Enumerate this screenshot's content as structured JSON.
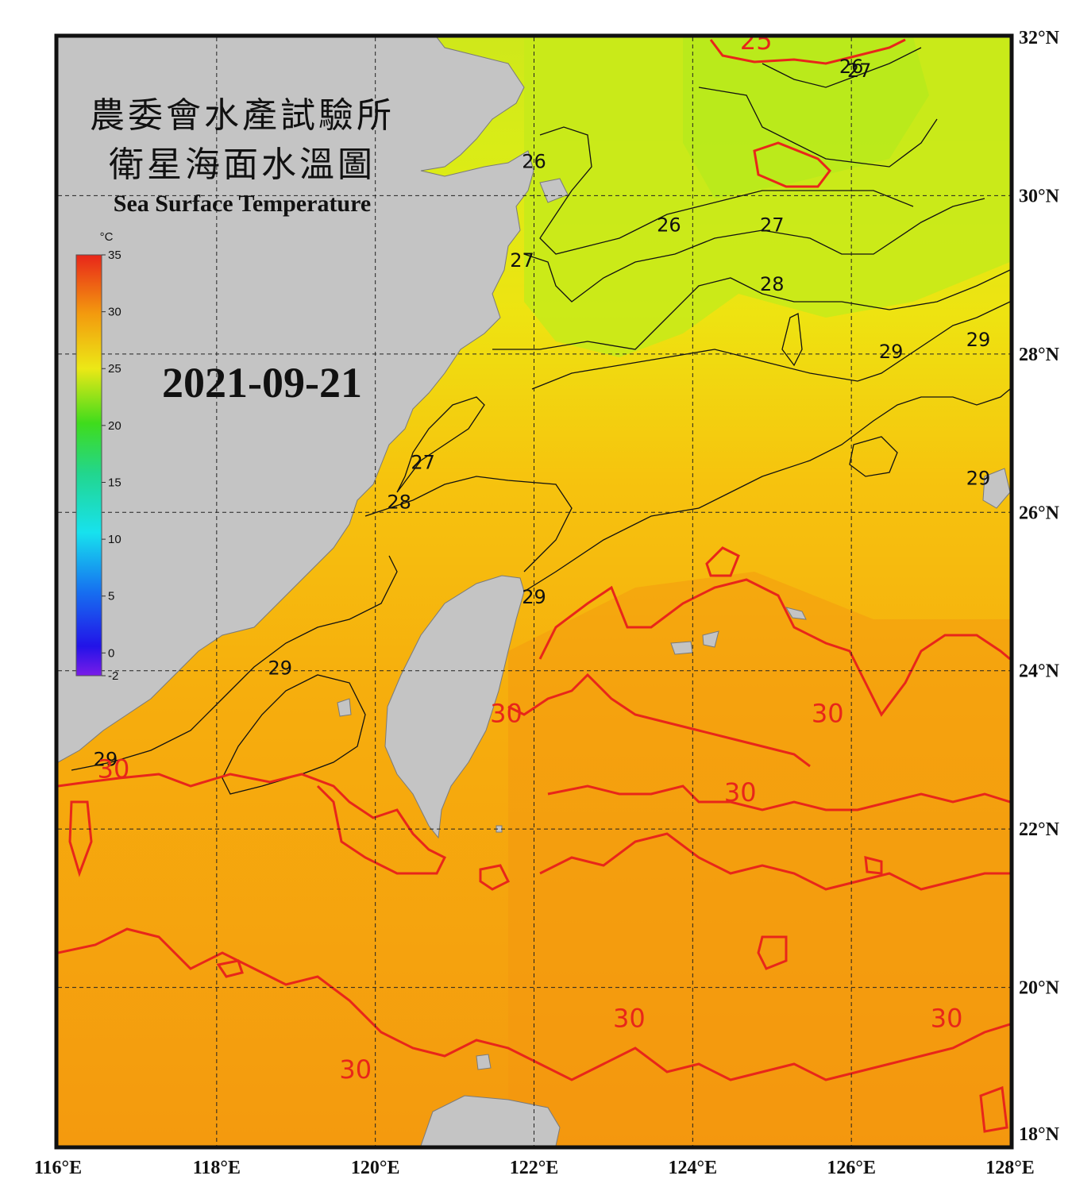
{
  "title": {
    "line1": "農委會水產試驗所",
    "line2": "衛星海面水溫圖",
    "line3": "Sea Surface Temperature"
  },
  "date": "2021-09-21",
  "colorbar": {
    "unit": "°C",
    "ticks": [
      "35",
      "30",
      "25",
      "20",
      "15",
      "10",
      "5",
      "0",
      "-2"
    ],
    "min": -2,
    "max": 35
  },
  "axes": {
    "lon_labels": [
      "116°E",
      "118°E",
      "120°E",
      "122°E",
      "124°E",
      "126°E",
      "128°E"
    ],
    "lat_labels": [
      "32°N",
      "30°N",
      "28°N",
      "26°N",
      "24°N",
      "22°N",
      "20°N",
      "18°N"
    ],
    "lon_range": [
      116,
      128
    ],
    "lat_range": [
      18,
      32
    ],
    "grid": "dashed"
  },
  "contour_labels": {
    "black": [
      {
        "text": "26",
        "lon": 126.0,
        "lat": 31.55
      },
      {
        "text": "27",
        "lon": 126.1,
        "lat": 31.5
      },
      {
        "text": "26",
        "lon": 122.0,
        "lat": 30.35
      },
      {
        "text": "26",
        "lon": 123.7,
        "lat": 29.55
      },
      {
        "text": "27",
        "lon": 125.0,
        "lat": 29.55
      },
      {
        "text": "27",
        "lon": 121.85,
        "lat": 29.1
      },
      {
        "text": "28",
        "lon": 125.0,
        "lat": 28.8
      },
      {
        "text": "29",
        "lon": 126.5,
        "lat": 27.95
      },
      {
        "text": "29",
        "lon": 127.6,
        "lat": 28.1
      },
      {
        "text": "27",
        "lon": 120.6,
        "lat": 26.55
      },
      {
        "text": "28",
        "lon": 120.3,
        "lat": 26.05
      },
      {
        "text": "29",
        "lon": 127.6,
        "lat": 26.35
      },
      {
        "text": "29",
        "lon": 122.0,
        "lat": 24.85
      },
      {
        "text": "29",
        "lon": 118.8,
        "lat": 23.95
      },
      {
        "text": "29",
        "lon": 116.6,
        "lat": 22.8
      }
    ],
    "red": [
      {
        "text": "25",
        "lon": 124.8,
        "lat": 31.85
      },
      {
        "text": "30",
        "lon": 121.65,
        "lat": 23.35
      },
      {
        "text": "30",
        "lon": 125.7,
        "lat": 23.35
      },
      {
        "text": "30",
        "lon": 116.7,
        "lat": 22.65
      },
      {
        "text": "30",
        "lon": 124.6,
        "lat": 22.35
      },
      {
        "text": "30",
        "lon": 123.2,
        "lat": 19.5
      },
      {
        "text": "30",
        "lon": 127.2,
        "lat": 19.5
      },
      {
        "text": "30",
        "lon": 119.75,
        "lat": 18.85
      }
    ]
  }
}
